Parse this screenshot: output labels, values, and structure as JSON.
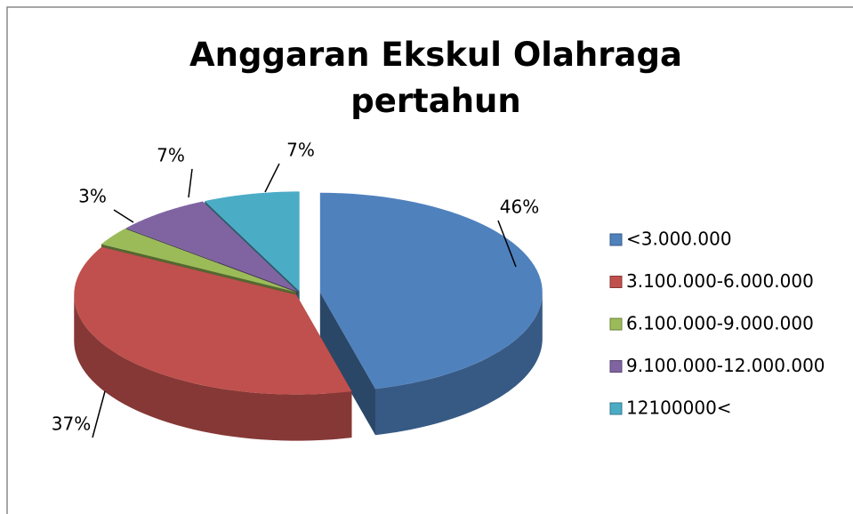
{
  "chart_data": {
    "type": "pie",
    "title": "Anggaran Ekskul Olahraga pertahun",
    "categories": [
      "<3.000.000",
      "3.100.000-6.000.000",
      "6.100.000-9.000.000",
      "9.100.000-12.000.000",
      "12100000<"
    ],
    "values": [
      46,
      37,
      3,
      7,
      7
    ],
    "value_labels": [
      "46%",
      "37%",
      "3%",
      "7%",
      "7%"
    ],
    "colors": [
      "#4f81bd",
      "#c0504d",
      "#9bbb59",
      "#8064a2",
      "#4bacc6"
    ],
    "legend": "right"
  }
}
